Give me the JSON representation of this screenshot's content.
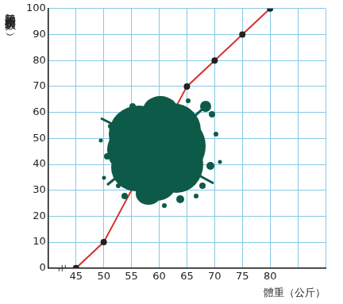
{
  "chart_data": {
    "type": "line",
    "x": [
      45,
      50,
      55,
      60,
      65,
      70,
      75,
      80
    ],
    "values": [
      0,
      10,
      null,
      null,
      70,
      80,
      90,
      100
    ],
    "color": "#d9302c",
    "marker": "circle",
    "xlabel": "體重（公斤）",
    "ylabel": "累積相對次數（%）",
    "xlim": [
      40,
      90
    ],
    "xticks": [
      45,
      50,
      55,
      60,
      65,
      70,
      75,
      80
    ],
    "ylim": [
      0,
      100
    ],
    "yticks": [
      0,
      10,
      20,
      30,
      40,
      50,
      60,
      70,
      80,
      90,
      100
    ],
    "grid": true
  }
}
